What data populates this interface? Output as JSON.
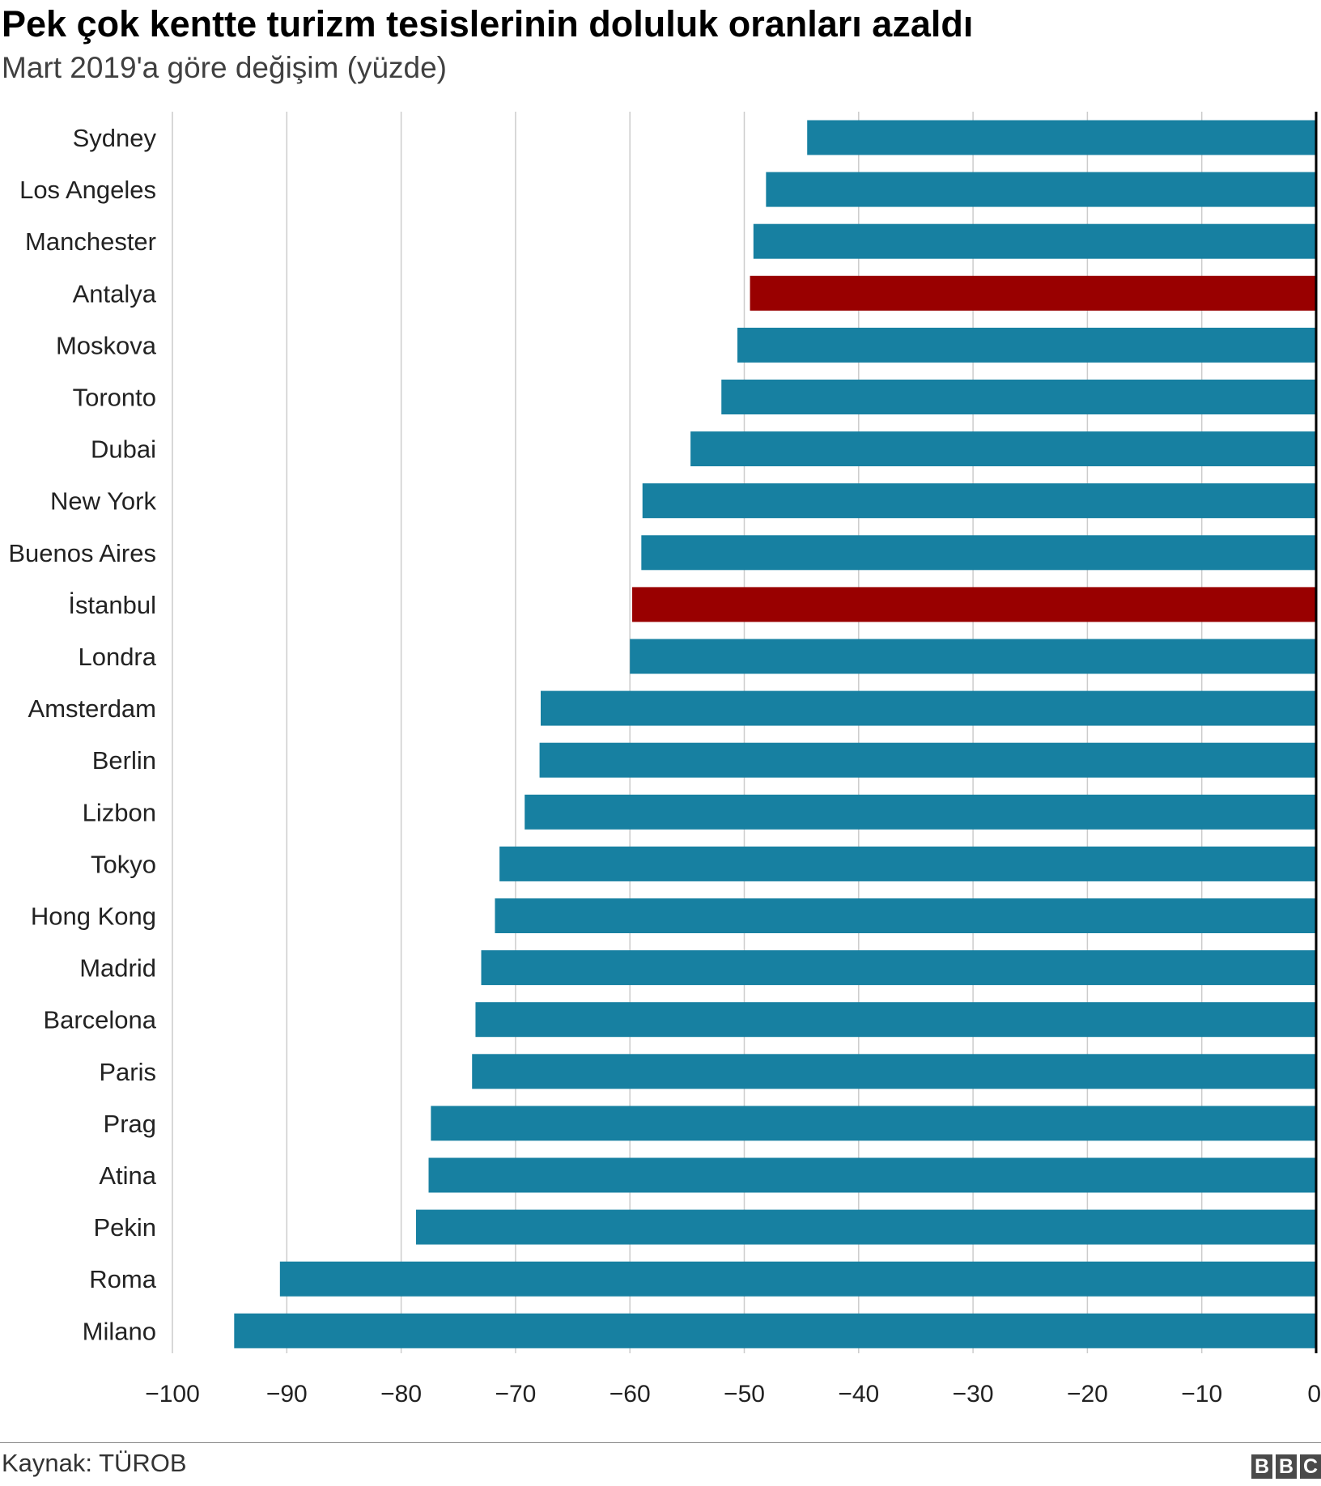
{
  "header": {
    "title": "Pek çok kentte turizm tesislerinin doluluk oranları azaldı",
    "subtitle": "Mart 2019'a göre değişim (yüzde)"
  },
  "footer": {
    "source": "Kaynak: TÜROB",
    "logo_letters": [
      "B",
      "B",
      "C"
    ]
  },
  "colors": {
    "default_bar": "#1780a1",
    "highlight_bar": "#990000",
    "grid": "#cccccc",
    "zero_line": "#000000"
  },
  "chart_data": {
    "type": "bar",
    "orientation": "horizontal",
    "title": "Pek çok kentte turizm tesislerinin doluluk oranları azaldı",
    "subtitle": "Mart 2019'a göre değişim (yüzde)",
    "xlabel": "",
    "ylabel": "",
    "xlim": [
      -100,
      0
    ],
    "xticks": [
      -100,
      -90,
      -80,
      -70,
      -60,
      -50,
      -40,
      -30,
      -20,
      -10,
      0
    ],
    "xtick_labels": [
      "−100",
      "−90",
      "−80",
      "−70",
      "−60",
      "−50",
      "−40",
      "−30",
      "−20",
      "−10",
      "0"
    ],
    "grid": true,
    "categories": [
      "Sydney",
      "Los Angeles",
      "Manchester",
      "Antalya",
      "Moskova",
      "Toronto",
      "Dubai",
      "New York",
      "Buenos Aires",
      "İstanbul",
      "Londra",
      "Amsterdam",
      "Berlin",
      "Lizbon",
      "Tokyo",
      "Hong Kong",
      "Madrid",
      "Barcelona",
      "Paris",
      "Prag",
      "Atina",
      "Pekin",
      "Roma",
      "Milano"
    ],
    "values": [
      -44.5,
      -48.1,
      -49.2,
      -49.5,
      -50.6,
      -52.0,
      -54.7,
      -58.9,
      -59.0,
      -59.8,
      -60.0,
      -67.8,
      -67.9,
      -69.2,
      -71.4,
      -71.8,
      -73.0,
      -73.5,
      -73.8,
      -77.4,
      -77.6,
      -78.7,
      -90.6,
      -94.6
    ],
    "highlighted": [
      "Antalya",
      "İstanbul"
    ],
    "source": "Kaynak: TÜROB"
  }
}
